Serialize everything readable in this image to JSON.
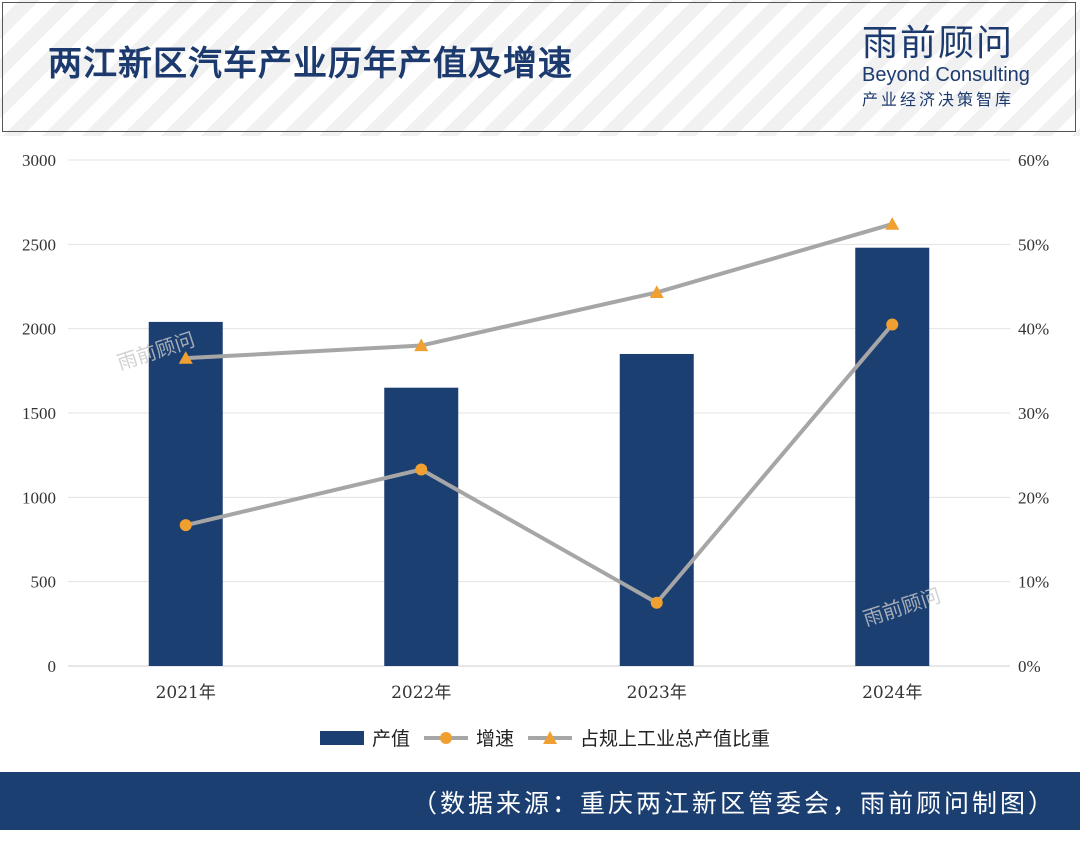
{
  "header": {
    "title": "两江新区汽车产业历年产值及增速",
    "logo_cn": "雨前顾问",
    "logo_en": "Beyond Consulting",
    "logo_sub": "产业经济决策智库"
  },
  "watermark": "雨前顾问",
  "footer": {
    "source": "（数据来源：重庆两江新区管委会，雨前顾问制图）"
  },
  "colors": {
    "bar": "#1c3f72",
    "line": "#a6a6a6",
    "marker": "#f0a030",
    "title": "#1c3a6e"
  },
  "chart_data": {
    "type": "bar",
    "categories": [
      "2021年",
      "2022年",
      "2023年",
      "2024年"
    ],
    "left_axis": {
      "min": 0,
      "max": 3000,
      "ticks": [
        "0",
        "500",
        "1000",
        "1500",
        "2000",
        "2500",
        "3000"
      ]
    },
    "right_axis": {
      "min": 0,
      "max": 60,
      "ticks": [
        "0%",
        "10%",
        "20%",
        "30%",
        "40%",
        "50%",
        "60%"
      ]
    },
    "grid": true,
    "legend_position": "bottom",
    "series": [
      {
        "name": "产值",
        "type": "bar",
        "axis": "left",
        "values": [
          2040,
          1650,
          1850,
          2480
        ]
      },
      {
        "name": "增速",
        "type": "line",
        "axis": "right",
        "marker": "circle",
        "values": [
          16.7,
          23.3,
          7.5,
          40.5
        ]
      },
      {
        "name": "占规上工业总产值比重",
        "type": "line",
        "axis": "right",
        "marker": "triangle",
        "values": [
          36.5,
          38.0,
          44.3,
          52.4
        ]
      }
    ]
  }
}
